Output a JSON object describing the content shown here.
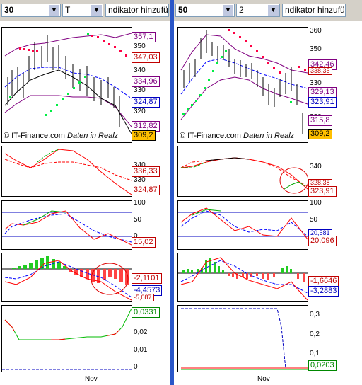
{
  "left": {
    "period_select": "30",
    "ind_select": "T",
    "indicator_field": "ndikator hinzufüg",
    "axis_main": [
      "350",
      "340",
      "330",
      "320"
    ],
    "labels_main": [
      "357,1",
      "347,03",
      "334,96",
      "324,87",
      "312,82",
      "309,2"
    ],
    "axis_p2": [
      "340",
      "330"
    ],
    "labels_p2": [
      "336,33",
      "324,87"
    ],
    "axis_p3": [
      "100",
      "50",
      "0"
    ],
    "labels_p3": [
      "15,02"
    ],
    "labels_p4": [
      "-2,1101",
      "-4,4573",
      "-5,087"
    ],
    "axis_p5": [
      "0,02",
      "0,01",
      "0"
    ],
    "labels_p5": [
      "0,0331"
    ],
    "date_label": "Nov"
  },
  "right": {
    "period_select": "50",
    "ind_select": "2",
    "indicator_field": "ndikator hinzufüg",
    "axis_main": [
      "360",
      "350",
      "340",
      "330",
      "320"
    ],
    "labels_main": [
      "342,46",
      "338,35",
      "329,13",
      "323,91",
      "315,8",
      "309,2"
    ],
    "axis_p2": [
      "340",
      "330"
    ],
    "labels_p2": [
      "328,38",
      "323,91"
    ],
    "axis_p3": [
      "100",
      "50",
      "0"
    ],
    "labels_p3": [
      "20,581",
      "20,096"
    ],
    "labels_p4": [
      "-1,6646",
      "-3,2883"
    ],
    "axis_p5": [
      "0,3",
      "0,2",
      "0,1"
    ],
    "labels_p5": [
      "0,0203"
    ],
    "date_label": "Nov"
  },
  "watermark": {
    "brand": "© IT-Finance.com",
    "suffix": "Daten in Realz"
  },
  "colors": {
    "highlight": "#ffbf00",
    "divider": "#2a56c8",
    "toolbar": "#d4d0c8"
  },
  "icons": {
    "dropdown": "chevron-down-icon"
  }
}
